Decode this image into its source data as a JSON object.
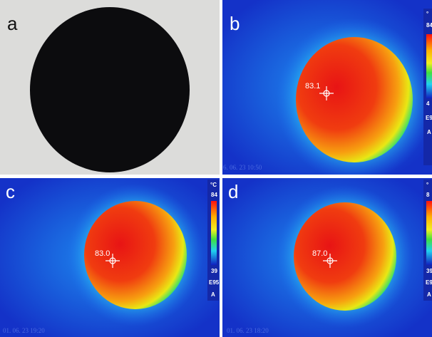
{
  "panels": [
    {
      "label": "a"
    },
    {
      "label": "b",
      "reading": "83.1",
      "scale": [
        "°",
        "84",
        "4",
        "E9",
        "A"
      ],
      "timestamp": "6. 06. 23 10:50"
    },
    {
      "label": "c",
      "reading": "83.0",
      "scale": [
        "°C",
        "84",
        "39",
        "E95",
        "A"
      ],
      "timestamp": "01. 06. 23 19:20"
    },
    {
      "label": "d",
      "reading": "87.0",
      "scale": [
        "°",
        "8",
        "39",
        "E9",
        "A"
      ],
      "timestamp": "01. 06. 23 18:20"
    }
  ]
}
